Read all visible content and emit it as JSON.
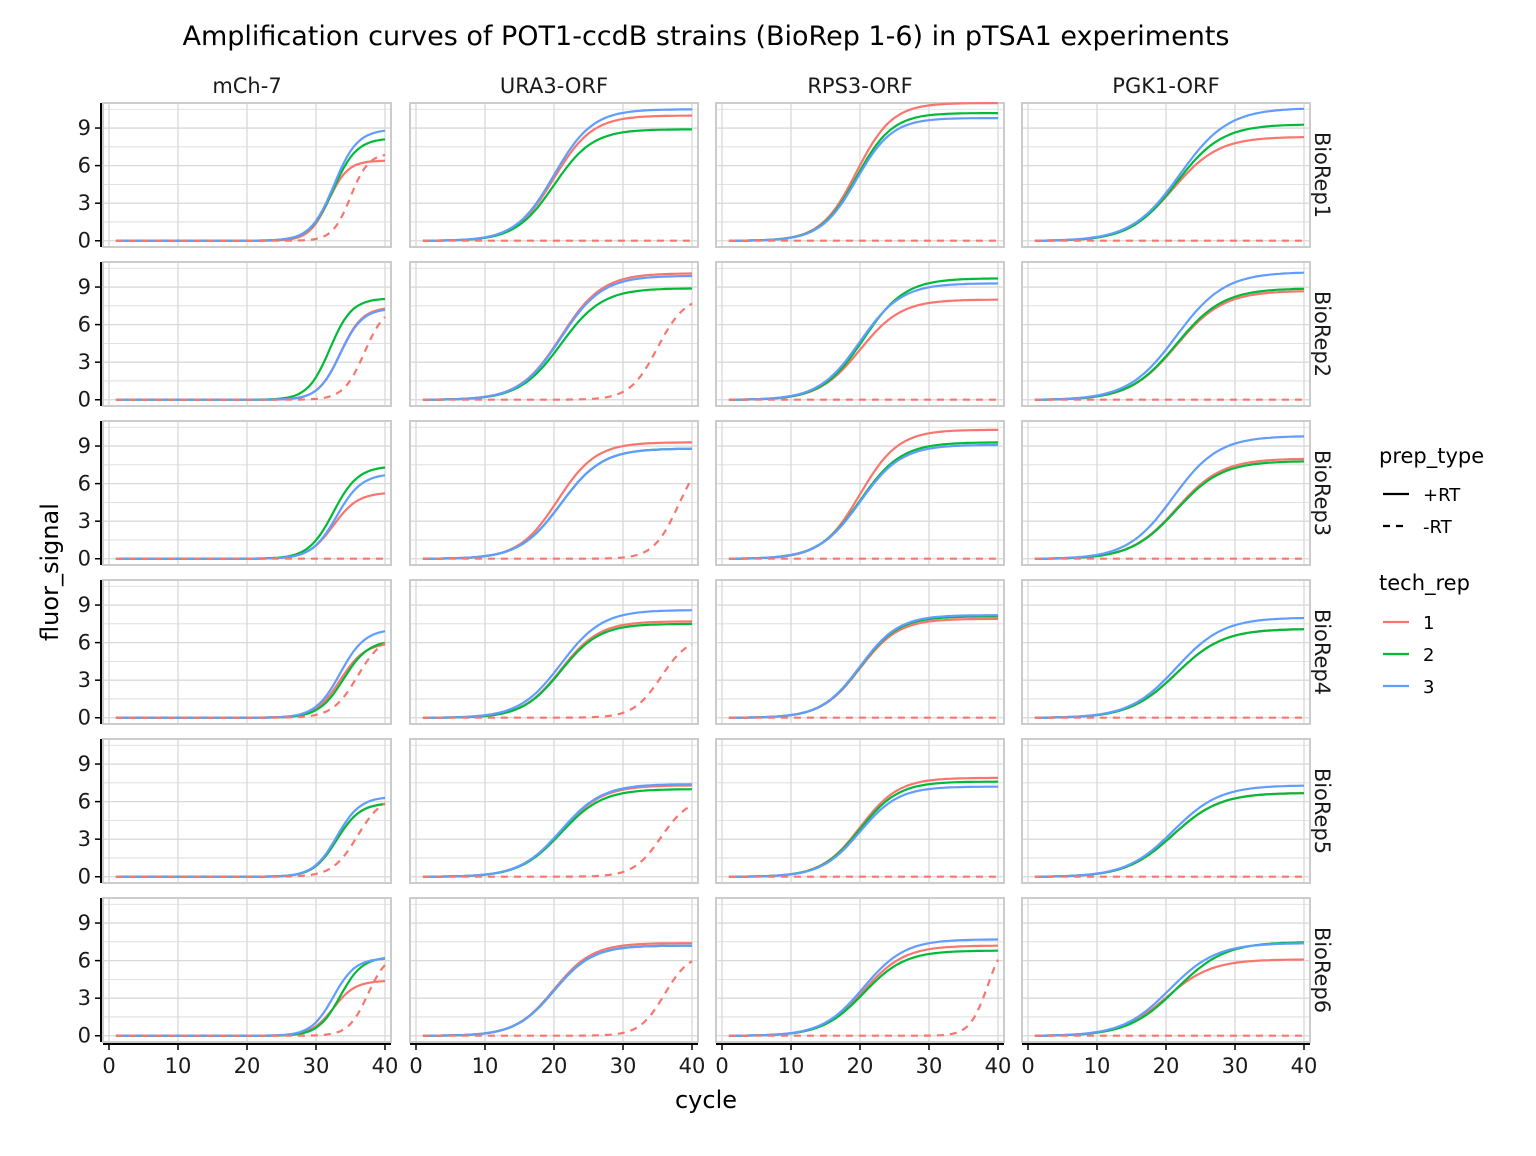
{
  "chart_data": {
    "type": "line",
    "title": "Amplification curves of POT1-ccdB strains (BioRep 1-6) in pTSA1 experiments",
    "xlabel": "cycle",
    "ylabel": "fluor_signal",
    "xlim": [
      0,
      40
    ],
    "ylim": [
      -0.5,
      11
    ],
    "x_ticks": [
      0,
      10,
      20,
      30,
      40
    ],
    "y_ticks": [
      0,
      3,
      6,
      9
    ],
    "grid": true,
    "legend_position": "right",
    "columns": [
      "mCh-7",
      "URA3-ORF",
      "RPS3-ORF",
      "PGK1-ORF"
    ],
    "rows": [
      "BioRep1",
      "BioRep2",
      "BioRep3",
      "BioRep4",
      "BioRep5",
      "BioRep6"
    ],
    "legend": {
      "prep_type": {
        "title": "prep_type",
        "items": [
          {
            "label": "+RT",
            "dash": "solid"
          },
          {
            "label": "-RT",
            "dash": "dashed"
          }
        ]
      },
      "tech_rep": {
        "title": "tech_rep",
        "items": [
          {
            "label": "1",
            "color": "#F8766D"
          },
          {
            "label": "2",
            "color": "#00BA38"
          },
          {
            "label": "3",
            "color": "#619CFF"
          }
        ]
      }
    },
    "cycles": [
      1,
      40
    ],
    "panels": [
      {
        "column": "mCh-7",
        "row": "BioRep1",
        "series": [
          {
            "tech_rep": "1",
            "prep_type": "+RT",
            "midpoint": 31.8,
            "slope": 1.4,
            "plateau": 6.4
          },
          {
            "tech_rep": "2",
            "prep_type": "+RT",
            "midpoint": 32.5,
            "slope": 1.7,
            "plateau": 8.2
          },
          {
            "tech_rep": "3",
            "prep_type": "+RT",
            "midpoint": 32.6,
            "slope": 1.7,
            "plateau": 8.9
          },
          {
            "tech_rep": "1",
            "prep_type": "-RT",
            "midpoint": 35.0,
            "slope": 1.3,
            "plateau": 7.0
          }
        ]
      },
      {
        "column": "URA3-ORF",
        "row": "BioRep1",
        "series": [
          {
            "tech_rep": "1",
            "prep_type": "+RT",
            "midpoint": 20.0,
            "slope": 2.8,
            "plateau": 10.0
          },
          {
            "tech_rep": "2",
            "prep_type": "+RT",
            "midpoint": 20.0,
            "slope": 2.8,
            "plateau": 8.9
          },
          {
            "tech_rep": "3",
            "prep_type": "+RT",
            "midpoint": 20.0,
            "slope": 2.8,
            "plateau": 10.5
          },
          {
            "tech_rep": "1",
            "prep_type": "-RT",
            "midpoint": 60,
            "slope": 2,
            "plateau": 0
          }
        ]
      },
      {
        "column": "RPS3-ORF",
        "row": "BioRep1",
        "series": [
          {
            "tech_rep": "1",
            "prep_type": "+RT",
            "midpoint": 19.5,
            "slope": 2.6,
            "plateau": 11.0
          },
          {
            "tech_rep": "2",
            "prep_type": "+RT",
            "midpoint": 19.5,
            "slope": 2.6,
            "plateau": 10.2
          },
          {
            "tech_rep": "3",
            "prep_type": "+RT",
            "midpoint": 19.5,
            "slope": 2.6,
            "plateau": 9.8
          },
          {
            "tech_rep": "1",
            "prep_type": "-RT",
            "midpoint": 60,
            "slope": 2,
            "plateau": 0
          }
        ]
      },
      {
        "column": "PGK1-ORF",
        "row": "BioRep1",
        "series": [
          {
            "tech_rep": "1",
            "prep_type": "+RT",
            "midpoint": 21.0,
            "slope": 3.3,
            "plateau": 8.3
          },
          {
            "tech_rep": "2",
            "prep_type": "+RT",
            "midpoint": 21.5,
            "slope": 3.3,
            "plateau": 9.3
          },
          {
            "tech_rep": "3",
            "prep_type": "+RT",
            "midpoint": 22.0,
            "slope": 3.5,
            "plateau": 10.6
          },
          {
            "tech_rep": "1",
            "prep_type": "-RT",
            "midpoint": 60,
            "slope": 2,
            "plateau": 0
          }
        ]
      },
      {
        "column": "mCh-7",
        "row": "BioRep2",
        "series": [
          {
            "tech_rep": "1",
            "prep_type": "+RT",
            "midpoint": 33.5,
            "slope": 1.6,
            "plateau": 7.4
          },
          {
            "tech_rep": "2",
            "prep_type": "+RT",
            "midpoint": 32.0,
            "slope": 1.6,
            "plateau": 8.1
          },
          {
            "tech_rep": "3",
            "prep_type": "+RT",
            "midpoint": 33.5,
            "slope": 1.6,
            "plateau": 7.3
          },
          {
            "tech_rep": "1",
            "prep_type": "-RT",
            "midpoint": 37.0,
            "slope": 1.5,
            "plateau": 7.5
          }
        ]
      },
      {
        "column": "URA3-ORF",
        "row": "BioRep2",
        "series": [
          {
            "tech_rep": "1",
            "prep_type": "+RT",
            "midpoint": 21.0,
            "slope": 3.0,
            "plateau": 10.1
          },
          {
            "tech_rep": "2",
            "prep_type": "+RT",
            "midpoint": 21.0,
            "slope": 3.0,
            "plateau": 8.9
          },
          {
            "tech_rep": "3",
            "prep_type": "+RT",
            "midpoint": 21.0,
            "slope": 3.0,
            "plateau": 9.9
          },
          {
            "tech_rep": "1",
            "prep_type": "-RT",
            "midpoint": 35.0,
            "slope": 2.0,
            "plateau": 8.3
          }
        ]
      },
      {
        "column": "RPS3-ORF",
        "row": "BioRep2",
        "series": [
          {
            "tech_rep": "1",
            "prep_type": "+RT",
            "midpoint": 20.0,
            "slope": 3.0,
            "plateau": 8.0
          },
          {
            "tech_rep": "2",
            "prep_type": "+RT",
            "midpoint": 20.5,
            "slope": 3.0,
            "plateau": 9.7
          },
          {
            "tech_rep": "3",
            "prep_type": "+RT",
            "midpoint": 20.0,
            "slope": 3.0,
            "plateau": 9.3
          },
          {
            "tech_rep": "1",
            "prep_type": "-RT",
            "midpoint": 60,
            "slope": 2,
            "plateau": 0
          }
        ]
      },
      {
        "column": "PGK1-ORF",
        "row": "BioRep2",
        "series": [
          {
            "tech_rep": "1",
            "prep_type": "+RT",
            "midpoint": 21.5,
            "slope": 3.4,
            "plateau": 8.7
          },
          {
            "tech_rep": "2",
            "prep_type": "+RT",
            "midpoint": 21.5,
            "slope": 3.4,
            "plateau": 8.9
          },
          {
            "tech_rep": "3",
            "prep_type": "+RT",
            "midpoint": 21.5,
            "slope": 3.5,
            "plateau": 10.2
          },
          {
            "tech_rep": "1",
            "prep_type": "-RT",
            "midpoint": 60,
            "slope": 2,
            "plateau": 0
          }
        ]
      },
      {
        "column": "mCh-7",
        "row": "BioRep3",
        "series": [
          {
            "tech_rep": "1",
            "prep_type": "+RT",
            "midpoint": 32.5,
            "slope": 1.8,
            "plateau": 5.3
          },
          {
            "tech_rep": "2",
            "prep_type": "+RT",
            "midpoint": 32.5,
            "slope": 1.8,
            "plateau": 7.4
          },
          {
            "tech_rep": "3",
            "prep_type": "+RT",
            "midpoint": 33.0,
            "slope": 1.8,
            "plateau": 6.8
          },
          {
            "tech_rep": "1",
            "prep_type": "-RT",
            "midpoint": 60,
            "slope": 2,
            "plateau": 0
          }
        ]
      },
      {
        "column": "URA3-ORF",
        "row": "BioRep3",
        "series": [
          {
            "tech_rep": "1",
            "prep_type": "+RT",
            "midpoint": 20.5,
            "slope": 2.8,
            "plateau": 9.3
          },
          {
            "tech_rep": "2",
            "prep_type": "+RT",
            "midpoint": 21.0,
            "slope": 3.0,
            "plateau": 8.8
          },
          {
            "tech_rep": "3",
            "prep_type": "+RT",
            "midpoint": 21.0,
            "slope": 3.0,
            "plateau": 8.8
          },
          {
            "tech_rep": "1",
            "prep_type": "-RT",
            "midpoint": 38.0,
            "slope": 1.8,
            "plateau": 8.5
          }
        ]
      },
      {
        "column": "RPS3-ORF",
        "row": "BioRep3",
        "series": [
          {
            "tech_rep": "1",
            "prep_type": "+RT",
            "midpoint": 20.0,
            "slope": 2.8,
            "plateau": 10.3
          },
          {
            "tech_rep": "2",
            "prep_type": "+RT",
            "midpoint": 20.0,
            "slope": 3.0,
            "plateau": 9.3
          },
          {
            "tech_rep": "3",
            "prep_type": "+RT",
            "midpoint": 20.0,
            "slope": 3.0,
            "plateau": 9.1
          },
          {
            "tech_rep": "1",
            "prep_type": "-RT",
            "midpoint": 60,
            "slope": 2,
            "plateau": 0
          }
        ]
      },
      {
        "column": "PGK1-ORF",
        "row": "BioRep3",
        "series": [
          {
            "tech_rep": "1",
            "prep_type": "+RT",
            "midpoint": 21.5,
            "slope": 3.3,
            "plateau": 8.0
          },
          {
            "tech_rep": "2",
            "prep_type": "+RT",
            "midpoint": 21.5,
            "slope": 3.3,
            "plateau": 7.8
          },
          {
            "tech_rep": "3",
            "prep_type": "+RT",
            "midpoint": 21.0,
            "slope": 3.3,
            "plateau": 9.8
          },
          {
            "tech_rep": "1",
            "prep_type": "-RT",
            "midpoint": 60,
            "slope": 2,
            "plateau": 0
          }
        ]
      },
      {
        "column": "mCh-7",
        "row": "BioRep4",
        "series": [
          {
            "tech_rep": "1",
            "prep_type": "+RT",
            "midpoint": 33.5,
            "slope": 1.8,
            "plateau": 6.0
          },
          {
            "tech_rep": "2",
            "prep_type": "+RT",
            "midpoint": 34.0,
            "slope": 1.8,
            "plateau": 6.2
          },
          {
            "tech_rep": "3",
            "prep_type": "+RT",
            "midpoint": 33.5,
            "slope": 1.8,
            "plateau": 7.1
          },
          {
            "tech_rep": "1",
            "prep_type": "-RT",
            "midpoint": 36.0,
            "slope": 1.8,
            "plateau": 6.6
          }
        ]
      },
      {
        "column": "URA3-ORF",
        "row": "BioRep4",
        "series": [
          {
            "tech_rep": "1",
            "prep_type": "+RT",
            "midpoint": 21.0,
            "slope": 2.8,
            "plateau": 7.7
          },
          {
            "tech_rep": "2",
            "prep_type": "+RT",
            "midpoint": 21.0,
            "slope": 2.8,
            "plateau": 7.5
          },
          {
            "tech_rep": "3",
            "prep_type": "+RT",
            "midpoint": 21.0,
            "slope": 3.0,
            "plateau": 8.6
          },
          {
            "tech_rep": "1",
            "prep_type": "-RT",
            "midpoint": 35.5,
            "slope": 2.0,
            "plateau": 6.5
          }
        ]
      },
      {
        "column": "RPS3-ORF",
        "row": "BioRep4",
        "series": [
          {
            "tech_rep": "1",
            "prep_type": "+RT",
            "midpoint": 20.0,
            "slope": 2.8,
            "plateau": 7.9
          },
          {
            "tech_rep": "2",
            "prep_type": "+RT",
            "midpoint": 20.0,
            "slope": 2.8,
            "plateau": 8.1
          },
          {
            "tech_rep": "3",
            "prep_type": "+RT",
            "midpoint": 20.0,
            "slope": 2.8,
            "plateau": 8.2
          },
          {
            "tech_rep": "1",
            "prep_type": "-RT",
            "midpoint": 60,
            "slope": 2,
            "plateau": 0
          }
        ]
      },
      {
        "column": "PGK1-ORF",
        "row": "BioRep4",
        "series": [
          {
            "tech_rep": "1",
            "prep_type": "+RT",
            "midpoint": 21.5,
            "slope": 3.4,
            "plateau": 7.1
          },
          {
            "tech_rep": "2",
            "prep_type": "+RT",
            "midpoint": 21.5,
            "slope": 3.4,
            "plateau": 7.1
          },
          {
            "tech_rep": "3",
            "prep_type": "+RT",
            "midpoint": 21.5,
            "slope": 3.4,
            "plateau": 8.0
          },
          {
            "tech_rep": "1",
            "prep_type": "-RT",
            "midpoint": 60,
            "slope": 2,
            "plateau": 0
          }
        ]
      },
      {
        "column": "mCh-7",
        "row": "BioRep5",
        "series": [
          {
            "tech_rep": "1",
            "prep_type": "+RT",
            "midpoint": 33.0,
            "slope": 1.7,
            "plateau": 5.9
          },
          {
            "tech_rep": "2",
            "prep_type": "+RT",
            "midpoint": 33.0,
            "slope": 1.7,
            "plateau": 5.9
          },
          {
            "tech_rep": "3",
            "prep_type": "+RT",
            "midpoint": 33.0,
            "slope": 1.7,
            "plateau": 6.4
          },
          {
            "tech_rep": "1",
            "prep_type": "-RT",
            "midpoint": 36.0,
            "slope": 1.8,
            "plateau": 6.5
          }
        ]
      },
      {
        "column": "URA3-ORF",
        "row": "BioRep5",
        "series": [
          {
            "tech_rep": "1",
            "prep_type": "+RT",
            "midpoint": 21.0,
            "slope": 3.0,
            "plateau": 7.3
          },
          {
            "tech_rep": "2",
            "prep_type": "+RT",
            "midpoint": 21.0,
            "slope": 3.0,
            "plateau": 7.0
          },
          {
            "tech_rep": "3",
            "prep_type": "+RT",
            "midpoint": 21.0,
            "slope": 3.0,
            "plateau": 7.4
          },
          {
            "tech_rep": "1",
            "prep_type": "-RT",
            "midpoint": 35.5,
            "slope": 2.0,
            "plateau": 6.3
          }
        ]
      },
      {
        "column": "RPS3-ORF",
        "row": "BioRep5",
        "series": [
          {
            "tech_rep": "1",
            "prep_type": "+RT",
            "midpoint": 20.0,
            "slope": 2.8,
            "plateau": 7.9
          },
          {
            "tech_rep": "2",
            "prep_type": "+RT",
            "midpoint": 20.0,
            "slope": 2.8,
            "plateau": 7.6
          },
          {
            "tech_rep": "3",
            "prep_type": "+RT",
            "midpoint": 20.0,
            "slope": 2.8,
            "plateau": 7.2
          },
          {
            "tech_rep": "1",
            "prep_type": "-RT",
            "midpoint": 60,
            "slope": 2,
            "plateau": 0
          }
        ]
      },
      {
        "column": "PGK1-ORF",
        "row": "BioRep5",
        "series": [
          {
            "tech_rep": "1",
            "prep_type": "+RT",
            "midpoint": 21.0,
            "slope": 3.4,
            "plateau": 6.7
          },
          {
            "tech_rep": "2",
            "prep_type": "+RT",
            "midpoint": 21.0,
            "slope": 3.4,
            "plateau": 6.7
          },
          {
            "tech_rep": "3",
            "prep_type": "+RT",
            "midpoint": 21.0,
            "slope": 3.4,
            "plateau": 7.3
          },
          {
            "tech_rep": "1",
            "prep_type": "-RT",
            "midpoint": 60,
            "slope": 2,
            "plateau": 0
          }
        ]
      },
      {
        "column": "mCh-7",
        "row": "BioRep6",
        "series": [
          {
            "tech_rep": "1",
            "prep_type": "+RT",
            "midpoint": 32.5,
            "slope": 1.6,
            "plateau": 4.4
          },
          {
            "tech_rep": "2",
            "prep_type": "+RT",
            "midpoint": 33.5,
            "slope": 1.6,
            "plateau": 6.3
          },
          {
            "tech_rep": "3",
            "prep_type": "+RT",
            "midpoint": 32.5,
            "slope": 1.6,
            "plateau": 6.2
          },
          {
            "tech_rep": "1",
            "prep_type": "-RT",
            "midpoint": 37.5,
            "slope": 1.4,
            "plateau": 6.6
          }
        ]
      },
      {
        "column": "URA3-ORF",
        "row": "BioRep6",
        "series": [
          {
            "tech_rep": "1",
            "prep_type": "+RT",
            "midpoint": 20.0,
            "slope": 2.8,
            "plateau": 7.4
          },
          {
            "tech_rep": "2",
            "prep_type": "+RT",
            "midpoint": 20.0,
            "slope": 2.8,
            "plateau": 7.2
          },
          {
            "tech_rep": "3",
            "prep_type": "+RT",
            "midpoint": 20.0,
            "slope": 2.8,
            "plateau": 7.2
          },
          {
            "tech_rep": "1",
            "prep_type": "-RT",
            "midpoint": 36.0,
            "slope": 1.8,
            "plateau": 6.6
          }
        ]
      },
      {
        "column": "RPS3-ORF",
        "row": "BioRep6",
        "series": [
          {
            "tech_rep": "1",
            "prep_type": "+RT",
            "midpoint": 20.5,
            "slope": 3.0,
            "plateau": 7.2
          },
          {
            "tech_rep": "2",
            "prep_type": "+RT",
            "midpoint": 20.5,
            "slope": 3.0,
            "plateau": 6.8
          },
          {
            "tech_rep": "3",
            "prep_type": "+RT",
            "midpoint": 20.5,
            "slope": 3.0,
            "plateau": 7.7
          },
          {
            "tech_rep": "1",
            "prep_type": "-RT",
            "midpoint": 38.5,
            "slope": 1.3,
            "plateau": 8.0
          }
        ]
      },
      {
        "column": "PGK1-ORF",
        "row": "BioRep6",
        "series": [
          {
            "tech_rep": "1",
            "prep_type": "+RT",
            "midpoint": 20.0,
            "slope": 3.3,
            "plateau": 6.1
          },
          {
            "tech_rep": "2",
            "prep_type": "+RT",
            "midpoint": 21.5,
            "slope": 3.5,
            "plateau": 7.5
          },
          {
            "tech_rep": "3",
            "prep_type": "+RT",
            "midpoint": 20.5,
            "slope": 3.4,
            "plateau": 7.4
          },
          {
            "tech_rep": "1",
            "prep_type": "-RT",
            "midpoint": 60,
            "slope": 2,
            "plateau": 0
          }
        ]
      }
    ]
  }
}
